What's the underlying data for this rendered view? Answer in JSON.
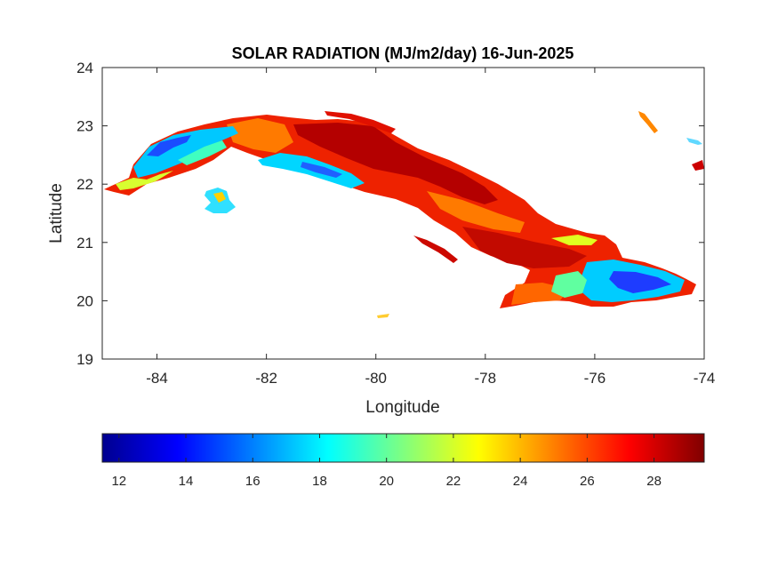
{
  "chart_data": {
    "type": "heatmap",
    "title": "SOLAR RADIATION (MJ/m2/day) 16-Jun-2025",
    "xlabel": "Longitude",
    "ylabel": "Latitude",
    "xlim": [
      -85,
      -74
    ],
    "ylim": [
      19,
      24
    ],
    "x_ticks": [
      -84,
      -82,
      -80,
      -78,
      -76,
      -74
    ],
    "y_ticks": [
      19,
      20,
      21,
      22,
      23,
      24
    ],
    "colorbar": {
      "range": [
        11.5,
        29.5
      ],
      "ticks": [
        12,
        14,
        16,
        18,
        20,
        22,
        24,
        26,
        28
      ],
      "colormap": "jet",
      "colors": [
        "#00008f",
        "#0000ff",
        "#00ffff",
        "#ffff00",
        "#ff0000",
        "#800000"
      ]
    },
    "grid": false,
    "regions": [
      {
        "lon": [
          -84.9,
          -83.0
        ],
        "lat": [
          21.8,
          22.9
        ],
        "approx_value": 18
      },
      {
        "lon": [
          -82.2,
          -80.4
        ],
        "lat": [
          22.2,
          22.5
        ],
        "approx_value": 19
      },
      {
        "lon": [
          -82.5,
          -77.5
        ],
        "lat": [
          21.5,
          23.2
        ],
        "approx_value": 27
      },
      {
        "lon": [
          -78.0,
          -75.5
        ],
        "lat": [
          20.0,
          21.3
        ],
        "approx_value": 26
      },
      {
        "lon": [
          -76.5,
          -74.2
        ],
        "lat": [
          19.9,
          20.7
        ],
        "approx_value": 18
      }
    ]
  }
}
